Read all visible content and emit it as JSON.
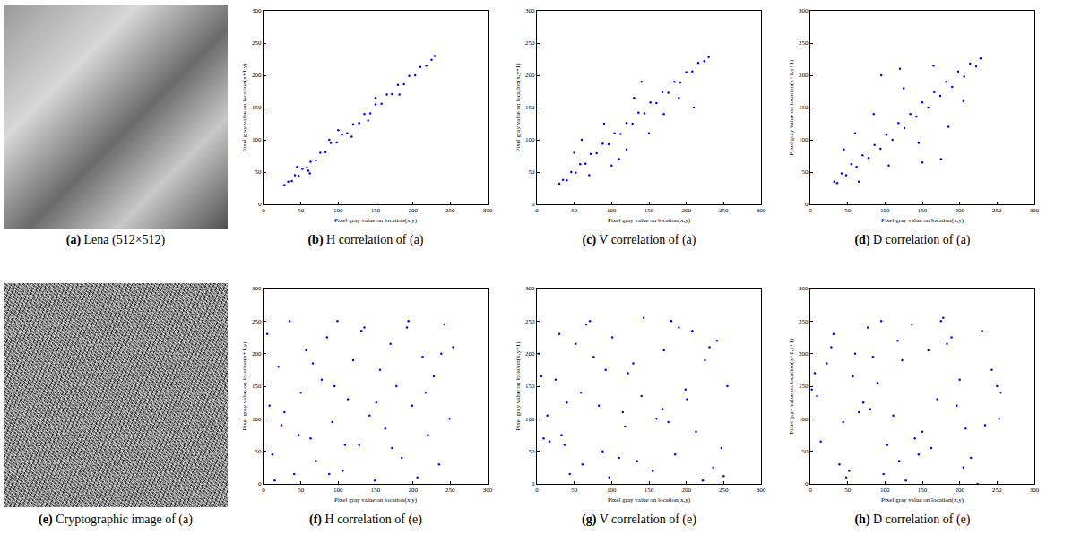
{
  "images": [
    {
      "letter": "(a)",
      "caption": "Lena (512×512)"
    },
    {
      "letter": "(e)",
      "caption": "Cryptographic image of (a)"
    }
  ],
  "chart_data": [
    {
      "type": "scatter",
      "letter": "(b)",
      "caption": "H correlation of (a)",
      "xlabel": "Pixel gray value on location(x,y)",
      "ylabel": "Pixel gray value on location(x+1,y)",
      "color": "#0000ff",
      "marker": "dot",
      "grid": false,
      "xlim": [
        0,
        300
      ],
      "ylim": [
        0,
        300
      ],
      "xticks": [
        0,
        50,
        100,
        150,
        200,
        250,
        300
      ],
      "yticks": [
        0,
        50,
        100,
        150,
        200,
        250,
        300
      ],
      "x": [
        28,
        33,
        38,
        42,
        47,
        52,
        58,
        63,
        70,
        76,
        83,
        90,
        98,
        105,
        112,
        120,
        128,
        135,
        143,
        150,
        158,
        165,
        172,
        180,
        188,
        195,
        203,
        210,
        218,
        225,
        229,
        45,
        62,
        88,
        118,
        150,
        182,
        60,
        100,
        140
      ],
      "y": [
        30,
        35,
        36,
        45,
        44,
        55,
        57,
        66,
        68,
        80,
        81,
        95,
        96,
        108,
        110,
        124,
        126,
        140,
        141,
        155,
        156,
        170,
        171,
        185,
        186,
        199,
        200,
        213,
        215,
        224,
        230,
        58,
        48,
        100,
        105,
        165,
        170,
        52,
        115,
        130
      ]
    },
    {
      "type": "scatter",
      "letter": "(c)",
      "caption": "V correlation of (a)",
      "xlabel": "Pixel gray value on location(x,y)",
      "ylabel": "Pixel gray value on location(x,y+1)",
      "color": "#0000ff",
      "marker": "dot",
      "grid": false,
      "xlim": [
        0,
        300
      ],
      "ylim": [
        0,
        300
      ],
      "xticks": [
        0,
        50,
        100,
        150,
        200,
        250,
        300
      ],
      "yticks": [
        0,
        50,
        100,
        150,
        200,
        250,
        300
      ],
      "x": [
        30,
        35,
        40,
        46,
        52,
        58,
        65,
        72,
        80,
        88,
        96,
        104,
        112,
        120,
        128,
        136,
        144,
        152,
        160,
        168,
        176,
        184,
        192,
        200,
        208,
        216,
        224,
        230,
        50,
        70,
        90,
        110,
        130,
        150,
        100,
        140,
        170,
        60,
        120,
        190,
        210
      ],
      "y": [
        32,
        38,
        37,
        50,
        49,
        62,
        63,
        78,
        79,
        94,
        93,
        110,
        109,
        126,
        125,
        142,
        141,
        158,
        157,
        174,
        173,
        190,
        189,
        205,
        206,
        219,
        222,
        228,
        80,
        45,
        125,
        70,
        165,
        110,
        60,
        190,
        140,
        100,
        85,
        165,
        150
      ]
    },
    {
      "type": "scatter",
      "letter": "(d)",
      "caption": "D correlation of (a)",
      "xlabel": "Pixel gray value on location(x,y)",
      "ylabel": "Pixel gray value on location(x+1,y+1)",
      "color": "#0000ff",
      "marker": "dot",
      "grid": false,
      "xlim": [
        0,
        300
      ],
      "ylim": [
        0,
        300
      ],
      "xticks": [
        0,
        50,
        100,
        150,
        200,
        250,
        300
      ],
      "yticks": [
        0,
        50,
        100,
        150,
        200,
        250,
        300
      ],
      "x": [
        32,
        36,
        42,
        48,
        55,
        62,
        70,
        78,
        86,
        94,
        102,
        110,
        118,
        126,
        134,
        142,
        150,
        158,
        166,
        174,
        182,
        190,
        198,
        206,
        214,
        222,
        228,
        45,
        65,
        85,
        105,
        125,
        145,
        165,
        185,
        205,
        95,
        150,
        60,
        175,
        120
      ],
      "y": [
        35,
        33,
        48,
        45,
        62,
        58,
        76,
        72,
        92,
        86,
        108,
        100,
        126,
        118,
        140,
        136,
        158,
        150,
        174,
        168,
        190,
        182,
        206,
        198,
        218,
        214,
        226,
        85,
        35,
        140,
        60,
        180,
        95,
        215,
        120,
        160,
        200,
        65,
        110,
        70,
        210
      ]
    },
    {
      "type": "scatter",
      "letter": "(f)",
      "caption": "H correlation of (e)",
      "xlabel": "Pixel gray value on location(x,y)",
      "ylabel": "Pixel gray value on location(x+1,y)",
      "color": "#0000ff",
      "marker": "dot",
      "grid": false,
      "xlim": [
        0,
        300
      ],
      "ylim": [
        0,
        300
      ],
      "xticks": [
        0,
        50,
        100,
        150,
        200,
        250,
        300
      ],
      "yticks": [
        0,
        50,
        100,
        150,
        200,
        250,
        300
      ],
      "x": [
        5,
        12,
        20,
        28,
        35,
        41,
        50,
        57,
        63,
        70,
        78,
        85,
        92,
        99,
        106,
        113,
        120,
        128,
        135,
        142,
        149,
        156,
        163,
        170,
        178,
        185,
        192,
        199,
        206,
        213,
        220,
        228,
        235,
        242,
        249,
        254,
        8,
        47,
        88,
        131,
        172,
        217,
        24,
        66,
        109,
        151,
        194,
        238,
        15,
        95
      ],
      "y": [
        230,
        45,
        180,
        110,
        250,
        15,
        140,
        205,
        70,
        35,
        160,
        225,
        95,
        250,
        20,
        130,
        190,
        60,
        240,
        105,
        5,
        175,
        85,
        215,
        150,
        40,
        240,
        120,
        10,
        195,
        75,
        165,
        30,
        245,
        100,
        210,
        120,
        75,
        15,
        235,
        55,
        140,
        90,
        185,
        60,
        125,
        250,
        200,
        5,
        150
      ]
    },
    {
      "type": "scatter",
      "letter": "(g)",
      "caption": "V correlation of (e)",
      "xlabel": "Pixel gray value on location(x,y)",
      "ylabel": "Pixel gray value on location(x,y+1)",
      "color": "#0000ff",
      "marker": "dot",
      "grid": false,
      "xlim": [
        0,
        300
      ],
      "ylim": [
        0,
        300
      ],
      "xticks": [
        0,
        50,
        100,
        150,
        200,
        250,
        300
      ],
      "yticks": [
        0,
        50,
        100,
        150,
        200,
        250,
        300
      ],
      "x": [
        250,
        3,
        118,
        66,
        201,
        37,
        155,
        92,
        231,
        14,
        180,
        59,
        134,
        213,
        25,
        101,
        247,
        76,
        168,
        44,
        190,
        122,
        9,
        222,
        83,
        143,
        30,
        255,
        110,
        176,
        52,
        236,
        129,
        17,
        199,
        71,
        160,
        241,
        97,
        33,
        185,
        6,
        140,
        225,
        61,
        115,
        208,
        40,
        170,
        88
      ],
      "y": [
        12,
        200,
        88,
        245,
        130,
        60,
        20,
        175,
        210,
        105,
        250,
        140,
        35,
        80,
        160,
        225,
        55,
        195,
        115,
        15,
        240,
        170,
        70,
        5,
        120,
        255,
        230,
        150,
        40,
        95,
        215,
        25,
        185,
        65,
        145,
        250,
        100,
        220,
        10,
        75,
        45,
        165,
        135,
        190,
        30,
        110,
        235,
        125,
        205,
        50
      ]
    },
    {
      "type": "scatter",
      "letter": "(h)",
      "caption": "D correlation of (e)",
      "xlabel": "Pixel gray value on location(x,y)",
      "ylabel": "Pixel gray value on location(x+1,y+1)",
      "color": "#0000ff",
      "marker": "dot",
      "grid": false,
      "xlim": [
        0,
        300
      ],
      "ylim": [
        0,
        300
      ],
      "xticks": [
        0,
        50,
        100,
        150,
        200,
        250,
        300
      ],
      "yticks": [
        0,
        50,
        100,
        150,
        200,
        250,
        300
      ],
      "x": [
        140,
        22,
        205,
        77,
        250,
        111,
        48,
        183,
        9,
        162,
        95,
        234,
        57,
        128,
        196,
        31,
        215,
        84,
        150,
        2,
        178,
        119,
        243,
        65,
        103,
        28,
        224,
        170,
        136,
        52,
        253,
        90,
        14,
        189,
        123,
        71,
        208,
        39,
        158,
        98,
        230,
        6,
        145,
        80,
        200,
        117,
        44,
        175,
        255,
        60
      ],
      "y": [
        70,
        185,
        25,
        240,
        150,
        105,
        10,
        215,
        135,
        55,
        250,
        90,
        165,
        5,
        120,
        230,
        40,
        195,
        80,
        145,
        255,
        35,
        175,
        110,
        60,
        210,
        0,
        130,
        245,
        20,
        100,
        155,
        65,
        225,
        190,
        125,
        85,
        30,
        205,
        15,
        235,
        170,
        45,
        115,
        160,
        220,
        95,
        250,
        140,
        200
      ]
    }
  ]
}
